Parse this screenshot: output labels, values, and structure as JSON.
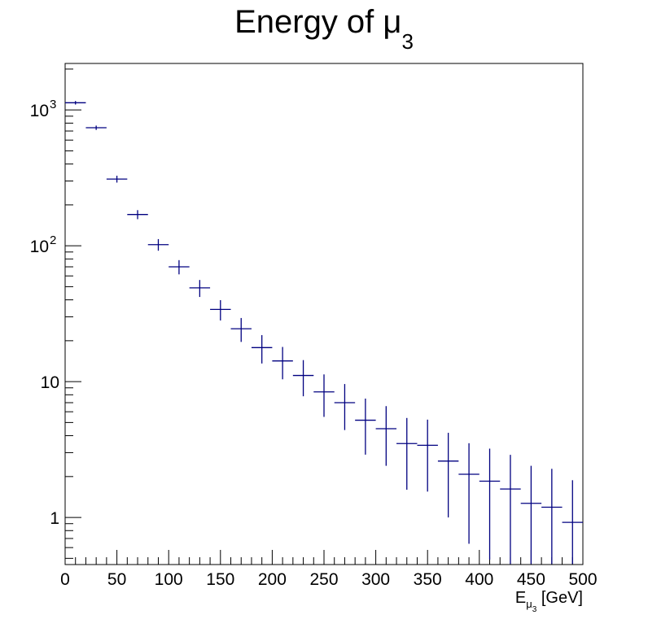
{
  "chart_data": {
    "type": "scatter",
    "title": {
      "text": "Energy of ",
      "symbol": "μ",
      "subscript": "3"
    },
    "xlabel": {
      "text": "E",
      "sub_symbol": "μ",
      "sub_index": "3",
      "unit": " [GeV]"
    },
    "ylabel": "",
    "xlim": [
      0,
      500
    ],
    "ylim": [
      0.45,
      2200
    ],
    "ylog": true,
    "grid": false,
    "legend": "none",
    "marker_color": "#000080",
    "bin_width": 20,
    "x_ticks": [
      "0",
      "50",
      "100",
      "150",
      "200",
      "250",
      "300",
      "350",
      "400",
      "450",
      "500"
    ],
    "y_tick_labels": [
      {
        "value": 1,
        "base": "1",
        "exp": ""
      },
      {
        "value": 10,
        "base": "10",
        "exp": ""
      },
      {
        "value": 100,
        "base": "10",
        "exp": "2"
      },
      {
        "value": 1000,
        "base": "10",
        "exp": "3"
      }
    ],
    "x": [
      10,
      30,
      50,
      70,
      90,
      110,
      130,
      150,
      170,
      190,
      210,
      230,
      250,
      270,
      290,
      310,
      330,
      350,
      370,
      390,
      410,
      430,
      450,
      470,
      490
    ],
    "values": [
      1130,
      740,
      310,
      170,
      102,
      70,
      49,
      34,
      24.5,
      17.8,
      14.2,
      11.1,
      8.4,
      7.0,
      5.2,
      4.5,
      3.5,
      3.4,
      2.6,
      2.08,
      1.85,
      1.62,
      1.27,
      1.19,
      0.92
    ],
    "errors": [
      34,
      27,
      18,
      13,
      10,
      8.4,
      7.0,
      5.8,
      4.9,
      4.2,
      3.8,
      3.3,
      2.9,
      2.6,
      2.3,
      2.1,
      1.9,
      1.85,
      1.6,
      1.44,
      1.36,
      1.27,
      1.13,
      1.09,
      0.96
    ]
  }
}
